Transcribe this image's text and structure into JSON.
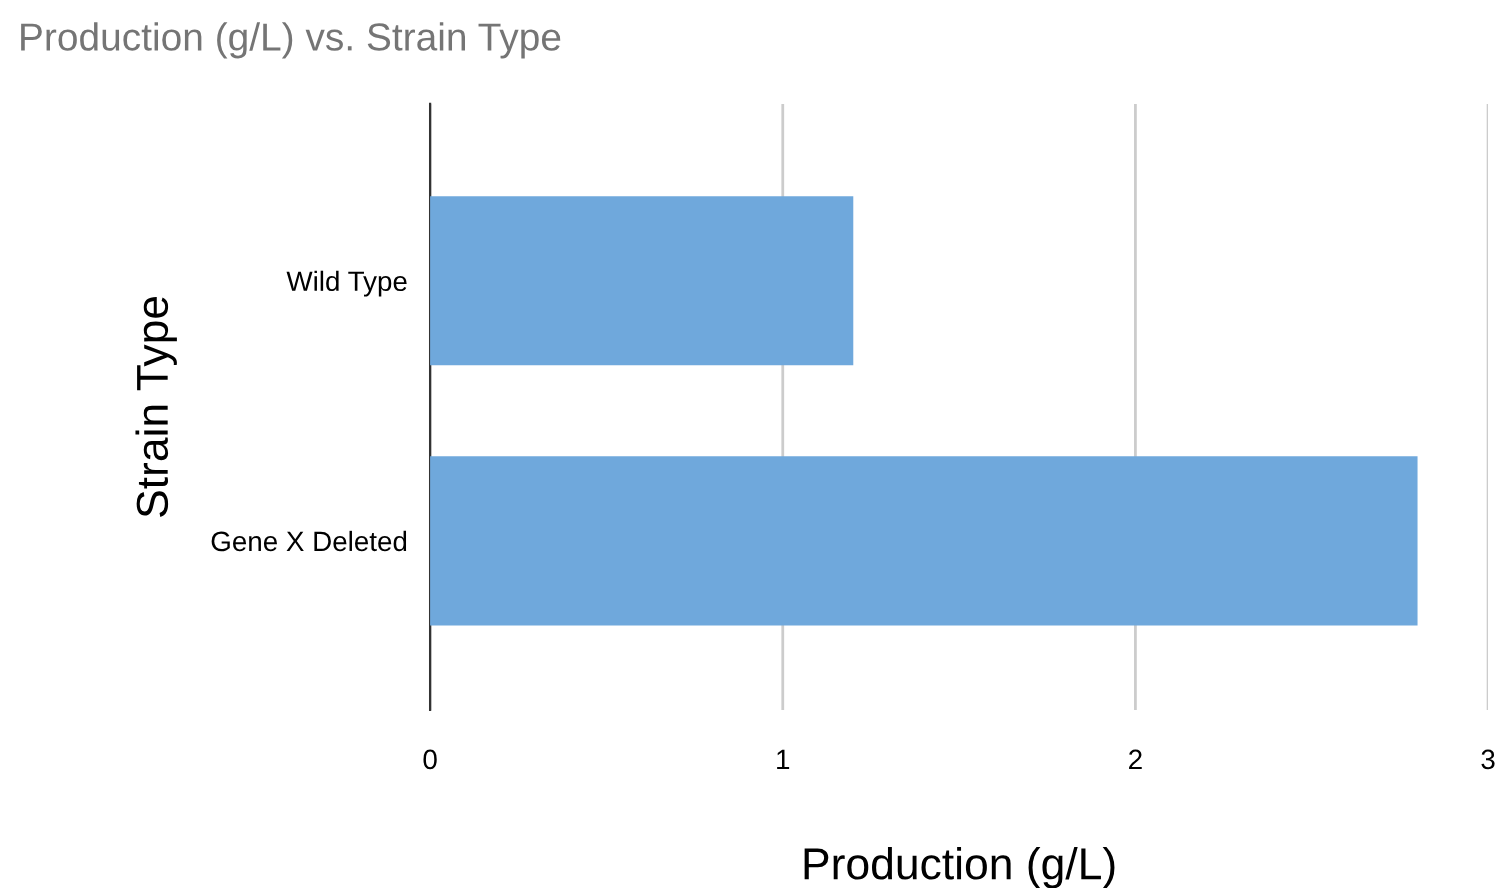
{
  "chart_data": {
    "type": "bar",
    "orientation": "horizontal",
    "title": "Production (g/L) vs. Strain Type",
    "xlabel": "Production (g/L)",
    "ylabel": "Strain Type",
    "categories": [
      "Wild Type",
      "Gene X Deleted"
    ],
    "values": [
      1.2,
      2.8
    ],
    "color": "#6fa8dc",
    "xlim": [
      0,
      3
    ],
    "xticks": [
      0,
      1,
      2,
      3
    ],
    "grid": "x",
    "legend": false
  }
}
